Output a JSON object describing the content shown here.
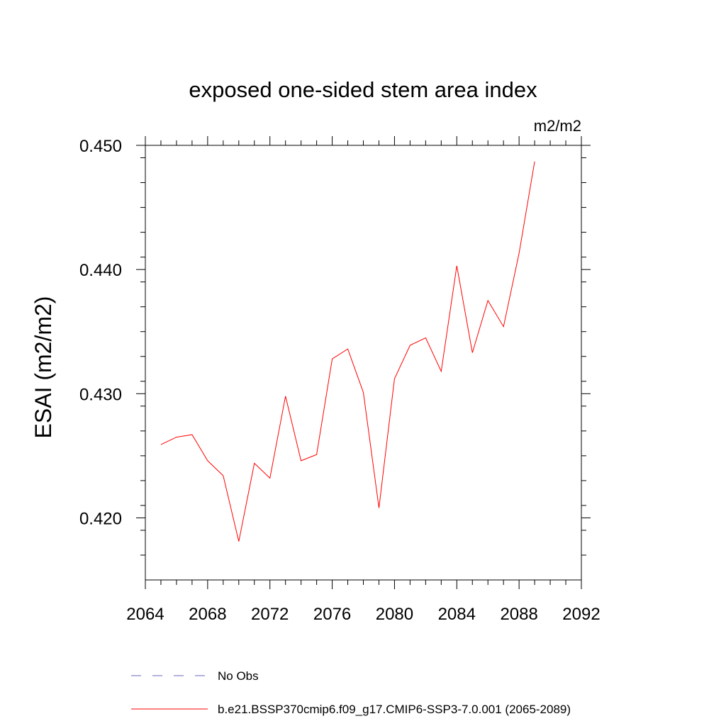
{
  "chart_data": {
    "type": "line",
    "title": "exposed one-sided stem area index",
    "units_label": "m2/m2",
    "ylabel": "ESAI  (m2/m2)",
    "xlabel": "",
    "xlim": [
      2064,
      2092
    ],
    "ylim": [
      0.415,
      0.45
    ],
    "xticks": [
      2064,
      2068,
      2072,
      2076,
      2080,
      2084,
      2088,
      2092
    ],
    "xtick_labels": [
      "2064",
      "2068",
      "2072",
      "2076",
      "2080",
      "2084",
      "2088",
      "2092"
    ],
    "yticks": [
      0.42,
      0.43,
      0.44,
      0.45
    ],
    "ytick_labels": [
      "0.420",
      "0.430",
      "0.440",
      "0.450"
    ],
    "grid": false,
    "legend_position": "bottom",
    "series": [
      {
        "name": "b.e21.BSSP370cmip6.f09_g17.CMIP6-SSP3-7.0.001 (2065-2089)",
        "color": "#ff0000",
        "style": "solid",
        "x": [
          2065,
          2066,
          2067,
          2068,
          2069,
          2070,
          2071,
          2072,
          2073,
          2074,
          2075,
          2076,
          2077,
          2078,
          2079,
          2080,
          2081,
          2082,
          2083,
          2084,
          2085,
          2086,
          2087,
          2088,
          2089
        ],
        "y": [
          0.4259,
          0.4265,
          0.4267,
          0.4246,
          0.4234,
          0.4181,
          0.4244,
          0.4232,
          0.4298,
          0.4246,
          0.4251,
          0.4328,
          0.4336,
          0.4301,
          0.4208,
          0.4312,
          0.4339,
          0.4345,
          0.4318,
          0.4403,
          0.4333,
          0.4375,
          0.4354,
          0.4413,
          0.4487
        ]
      }
    ],
    "legend_entries": [
      {
        "label": "No Obs",
        "color": "#6666bb",
        "style": "dashed"
      },
      {
        "label": "b.e21.BSSP370cmip6.f09_g17.CMIP6-SSP3-7.0.001 (2065-2089)",
        "color": "#ff0000",
        "style": "solid"
      }
    ]
  }
}
